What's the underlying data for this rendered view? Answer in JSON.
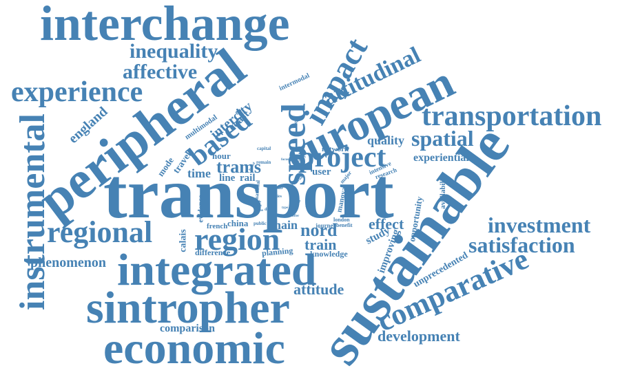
{
  "palette": {
    "word_color": "#4682b4",
    "background": "#ffffff"
  },
  "words": [
    {
      "id": "transport",
      "text": "transport"
    },
    {
      "id": "sustainable",
      "text": "sustainable"
    },
    {
      "id": "interchange",
      "text": "interchange"
    },
    {
      "id": "peripheral",
      "text": "peripheral"
    },
    {
      "id": "european",
      "text": "european"
    },
    {
      "id": "integrated",
      "text": "integrated"
    },
    {
      "id": "sintropher",
      "text": "sintropher"
    },
    {
      "id": "economic",
      "text": "economic"
    },
    {
      "id": "instrumental",
      "text": "instrumental"
    },
    {
      "id": "region",
      "text": "region"
    },
    {
      "id": "regional",
      "text": "regional"
    },
    {
      "id": "experience",
      "text": "experience"
    },
    {
      "id": "project",
      "text": "project"
    },
    {
      "id": "speed",
      "text": "speed"
    },
    {
      "id": "impact",
      "text": "impact"
    },
    {
      "id": "based",
      "text": "based"
    },
    {
      "id": "transportation",
      "text": "transportation"
    },
    {
      "id": "comparative",
      "text": "comparative"
    },
    {
      "id": "attitudinal",
      "text": "attitudinal"
    },
    {
      "id": "investment",
      "text": "investment"
    },
    {
      "id": "satisfaction",
      "text": "satisfaction"
    },
    {
      "id": "spatial",
      "text": "spatial"
    },
    {
      "id": "inequality",
      "text": "inequality"
    },
    {
      "id": "affective",
      "text": "affective"
    },
    {
      "id": "development",
      "text": "development"
    },
    {
      "id": "phenomenon",
      "text": "phenomenon"
    },
    {
      "id": "comparison",
      "text": "comparison"
    },
    {
      "id": "attitude",
      "text": "attitude"
    },
    {
      "id": "trams",
      "text": "trams"
    },
    {
      "id": "nord",
      "text": "nord"
    },
    {
      "id": "train",
      "text": "train"
    },
    {
      "id": "effect",
      "text": "effect"
    },
    {
      "id": "intercity",
      "text": "intercity"
    },
    {
      "id": "england",
      "text": "england"
    },
    {
      "id": "quality",
      "text": "quality"
    },
    {
      "id": "experiential",
      "text": "experiential"
    },
    {
      "id": "main",
      "text": "main"
    },
    {
      "id": "time",
      "text": "time"
    },
    {
      "id": "line",
      "text": "line"
    },
    {
      "id": "rail",
      "text": "rail"
    },
    {
      "id": "hour",
      "text": "hour"
    },
    {
      "id": "coast",
      "text": "coast"
    },
    {
      "id": "user",
      "text": "user"
    },
    {
      "id": "unprecedented",
      "text": "unprecedented"
    },
    {
      "id": "study",
      "text": "study"
    },
    {
      "id": "improving",
      "text": "improving"
    },
    {
      "id": "opportunity",
      "text": "opportunity"
    },
    {
      "id": "calais",
      "text": "calais"
    },
    {
      "id": "china",
      "text": "china"
    },
    {
      "id": "knowledge",
      "text": "knowledge"
    },
    {
      "id": "planning",
      "text": "planning"
    },
    {
      "id": "difference",
      "text": "difference"
    },
    {
      "id": "french",
      "text": "french"
    },
    {
      "id": "mode",
      "text": "mode"
    },
    {
      "id": "travel",
      "text": "travel"
    },
    {
      "id": "network",
      "text": "network"
    },
    {
      "id": "availability",
      "text": "availability"
    },
    {
      "id": "multimodal",
      "text": "multimodal"
    },
    {
      "id": "intermodal",
      "text": "intermodal"
    },
    {
      "id": "evidence",
      "text": "evidence"
    },
    {
      "id": "manova",
      "text": "manova"
    },
    {
      "id": "journey",
      "text": "journey"
    },
    {
      "id": "london",
      "text": "london"
    },
    {
      "id": "benefit",
      "text": "benefit"
    },
    {
      "id": "intensive",
      "text": "intensive"
    },
    {
      "id": "research",
      "text": "research"
    },
    {
      "id": "major",
      "text": "major"
    },
    {
      "id": "national",
      "text": "national"
    },
    {
      "id": "capital",
      "text": "capital"
    },
    {
      "id": "remain",
      "text": "remain"
    },
    {
      "id": "analysis",
      "text": "analysis"
    },
    {
      "id": "public",
      "text": "public"
    },
    {
      "id": "factor",
      "text": "factor"
    },
    {
      "id": "station",
      "text": "station"
    },
    {
      "id": "hub",
      "text": "hub"
    },
    {
      "id": "cities",
      "text": "cities"
    },
    {
      "id": "urban",
      "text": "urban"
    },
    {
      "id": "city",
      "text": "city"
    },
    {
      "id": "due",
      "text": "due"
    },
    {
      "id": "loss",
      "text": "loss"
    },
    {
      "id": "goal",
      "text": "goal"
    },
    {
      "id": "type",
      "text": "type"
    },
    {
      "id": "linked",
      "text": "linked"
    },
    {
      "id": "offer",
      "text": "offer"
    },
    {
      "id": "close",
      "text": "close"
    },
    {
      "id": "ending",
      "text": "ending"
    },
    {
      "id": "ease",
      "text": "ease"
    },
    {
      "id": "focus",
      "text": "focus"
    },
    {
      "id": "mobility",
      "text": "mobility"
    }
  ]
}
